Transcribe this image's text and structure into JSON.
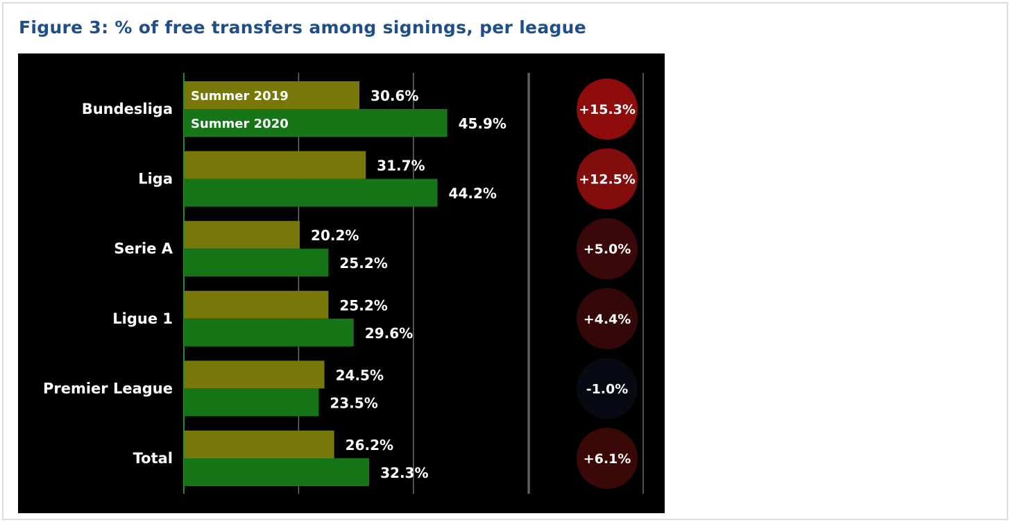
{
  "figure": {
    "title": "Figure 3: % of free transfers among signings, per league"
  },
  "colors": {
    "background": "#000000",
    "summer_2019": "#77770a",
    "summer_2020": "#167516",
    "gridline": "#6e6e6e",
    "title": "#1f4f8b"
  },
  "chart_data": {
    "type": "bar",
    "orientation": "horizontal",
    "categories": [
      "Bundesliga",
      "Liga",
      "Serie A",
      "Ligue 1",
      "Premier League",
      "Total"
    ],
    "series": [
      {
        "name": "Summer 2019",
        "values": [
          30.6,
          31.7,
          20.2,
          25.2,
          24.5,
          26.2
        ],
        "color": "#77770a"
      },
      {
        "name": "Summer 2020",
        "values": [
          45.9,
          44.2,
          25.2,
          29.6,
          23.5,
          32.3
        ],
        "color": "#167516"
      }
    ],
    "value_labels": {
      "Summer 2019": [
        "30.6%",
        "31.7%",
        "20.2%",
        "25.2%",
        "24.5%",
        "26.2%"
      ],
      "Summer 2020": [
        "45.9%",
        "44.2%",
        "25.2%",
        "29.6%",
        "23.5%",
        "32.3%"
      ]
    },
    "differences": [
      15.3,
      12.5,
      5.0,
      4.4,
      -1.0,
      6.1
    ],
    "difference_labels": [
      "+15.3%",
      "+12.5%",
      "+5.0%",
      "+4.4%",
      "-1.0%",
      "+6.1%"
    ],
    "difference_colors": [
      "#8e0c0c",
      "#820d0d",
      "#3a0808",
      "#350808",
      "#070a12",
      "#3b0808"
    ],
    "legend": {
      "placement": "inside-first-bars",
      "entries": [
        "Summer 2019",
        "Summer 2020"
      ]
    },
    "xlim": [
      0,
      60
    ],
    "xticks": [
      0,
      20,
      40,
      60
    ],
    "grid": true,
    "title": "Figure 3: % of free transfers among signings, per league",
    "xlabel": "",
    "ylabel": ""
  }
}
